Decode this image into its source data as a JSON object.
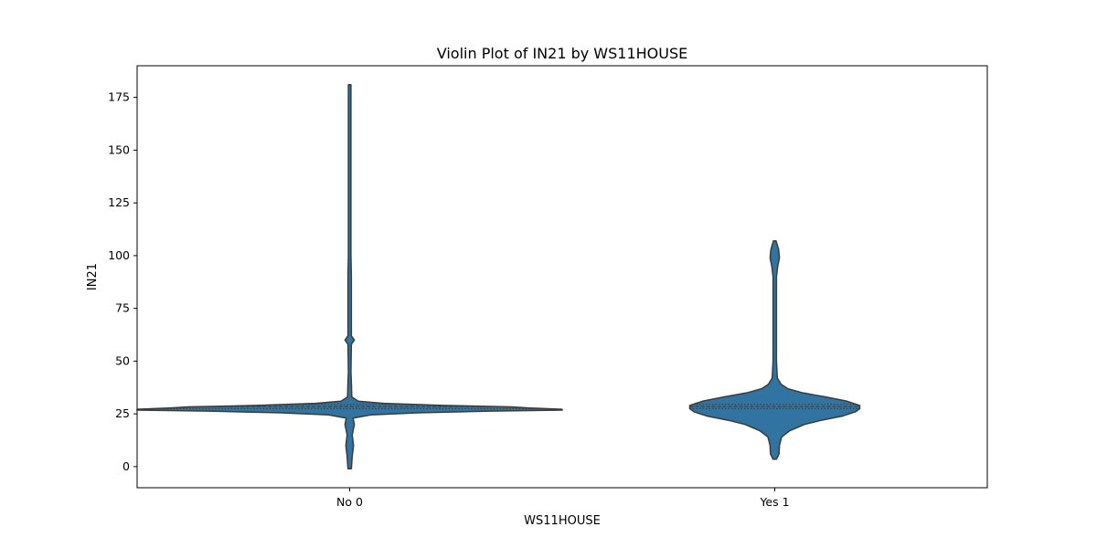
{
  "chart_data": {
    "type": "violin",
    "title": "Violin Plot of IN21 by WS11HOUSE",
    "xlabel": "WS11HOUSE",
    "ylabel": "IN21",
    "ylim": [
      -10,
      190
    ],
    "yticks": [
      0,
      25,
      50,
      75,
      100,
      125,
      150,
      175
    ],
    "grid": false,
    "categories": [
      "No 0",
      "Yes 1"
    ],
    "fill_color": "#3274a1",
    "edge_color": "#3a3a3a",
    "violins": [
      {
        "category": "No 0",
        "min": -1,
        "max": 181,
        "quartiles": [
          27.5,
          28.5,
          29.5
        ],
        "outline": [
          {
            "y": -1,
            "w": 0.004
          },
          {
            "y": 5,
            "w": 0.006
          },
          {
            "y": 10,
            "w": 0.009
          },
          {
            "y": 15,
            "w": 0.006
          },
          {
            "y": 20,
            "w": 0.011
          },
          {
            "y": 23,
            "w": 0.008
          },
          {
            "y": 24.5,
            "w": 0.05
          },
          {
            "y": 25.5,
            "w": 0.16
          },
          {
            "y": 26.3,
            "w": 0.33
          },
          {
            "y": 26.8,
            "w": 0.5
          },
          {
            "y": 27.2,
            "w": 0.5
          },
          {
            "y": 27.8,
            "w": 0.42
          },
          {
            "y": 28.3,
            "w": 0.38
          },
          {
            "y": 29,
            "w": 0.22
          },
          {
            "y": 30,
            "w": 0.08
          },
          {
            "y": 31,
            "w": 0.02
          },
          {
            "y": 33,
            "w": 0.005
          },
          {
            "y": 40,
            "w": 0.004
          },
          {
            "y": 45,
            "w": 0.003
          },
          {
            "y": 58,
            "w": 0.004
          },
          {
            "y": 60,
            "w": 0.011
          },
          {
            "y": 62,
            "w": 0.004
          },
          {
            "y": 90,
            "w": 0.004
          },
          {
            "y": 100,
            "w": 0.003
          },
          {
            "y": 181,
            "w": 0.003
          }
        ]
      },
      {
        "category": "Yes 1",
        "min": 3.5,
        "max": 107,
        "quartiles": [
          27.5,
          28.5,
          29.5
        ],
        "outline": [
          {
            "y": 3.5,
            "w": 0.004
          },
          {
            "y": 6,
            "w": 0.01
          },
          {
            "y": 10,
            "w": 0.011
          },
          {
            "y": 14,
            "w": 0.016
          },
          {
            "y": 17,
            "w": 0.035
          },
          {
            "y": 20,
            "w": 0.07
          },
          {
            "y": 22,
            "w": 0.11
          },
          {
            "y": 24,
            "w": 0.16
          },
          {
            "y": 26,
            "w": 0.19
          },
          {
            "y": 27.5,
            "w": 0.2
          },
          {
            "y": 29,
            "w": 0.2
          },
          {
            "y": 31,
            "w": 0.17
          },
          {
            "y": 33,
            "w": 0.12
          },
          {
            "y": 35,
            "w": 0.065
          },
          {
            "y": 37,
            "w": 0.03
          },
          {
            "y": 39,
            "w": 0.015
          },
          {
            "y": 42,
            "w": 0.006
          },
          {
            "y": 50,
            "w": 0.004
          },
          {
            "y": 90,
            "w": 0.004
          },
          {
            "y": 95,
            "w": 0.007
          },
          {
            "y": 99,
            "w": 0.011
          },
          {
            "y": 103,
            "w": 0.009
          },
          {
            "y": 107,
            "w": 0.003
          }
        ]
      }
    ]
  }
}
